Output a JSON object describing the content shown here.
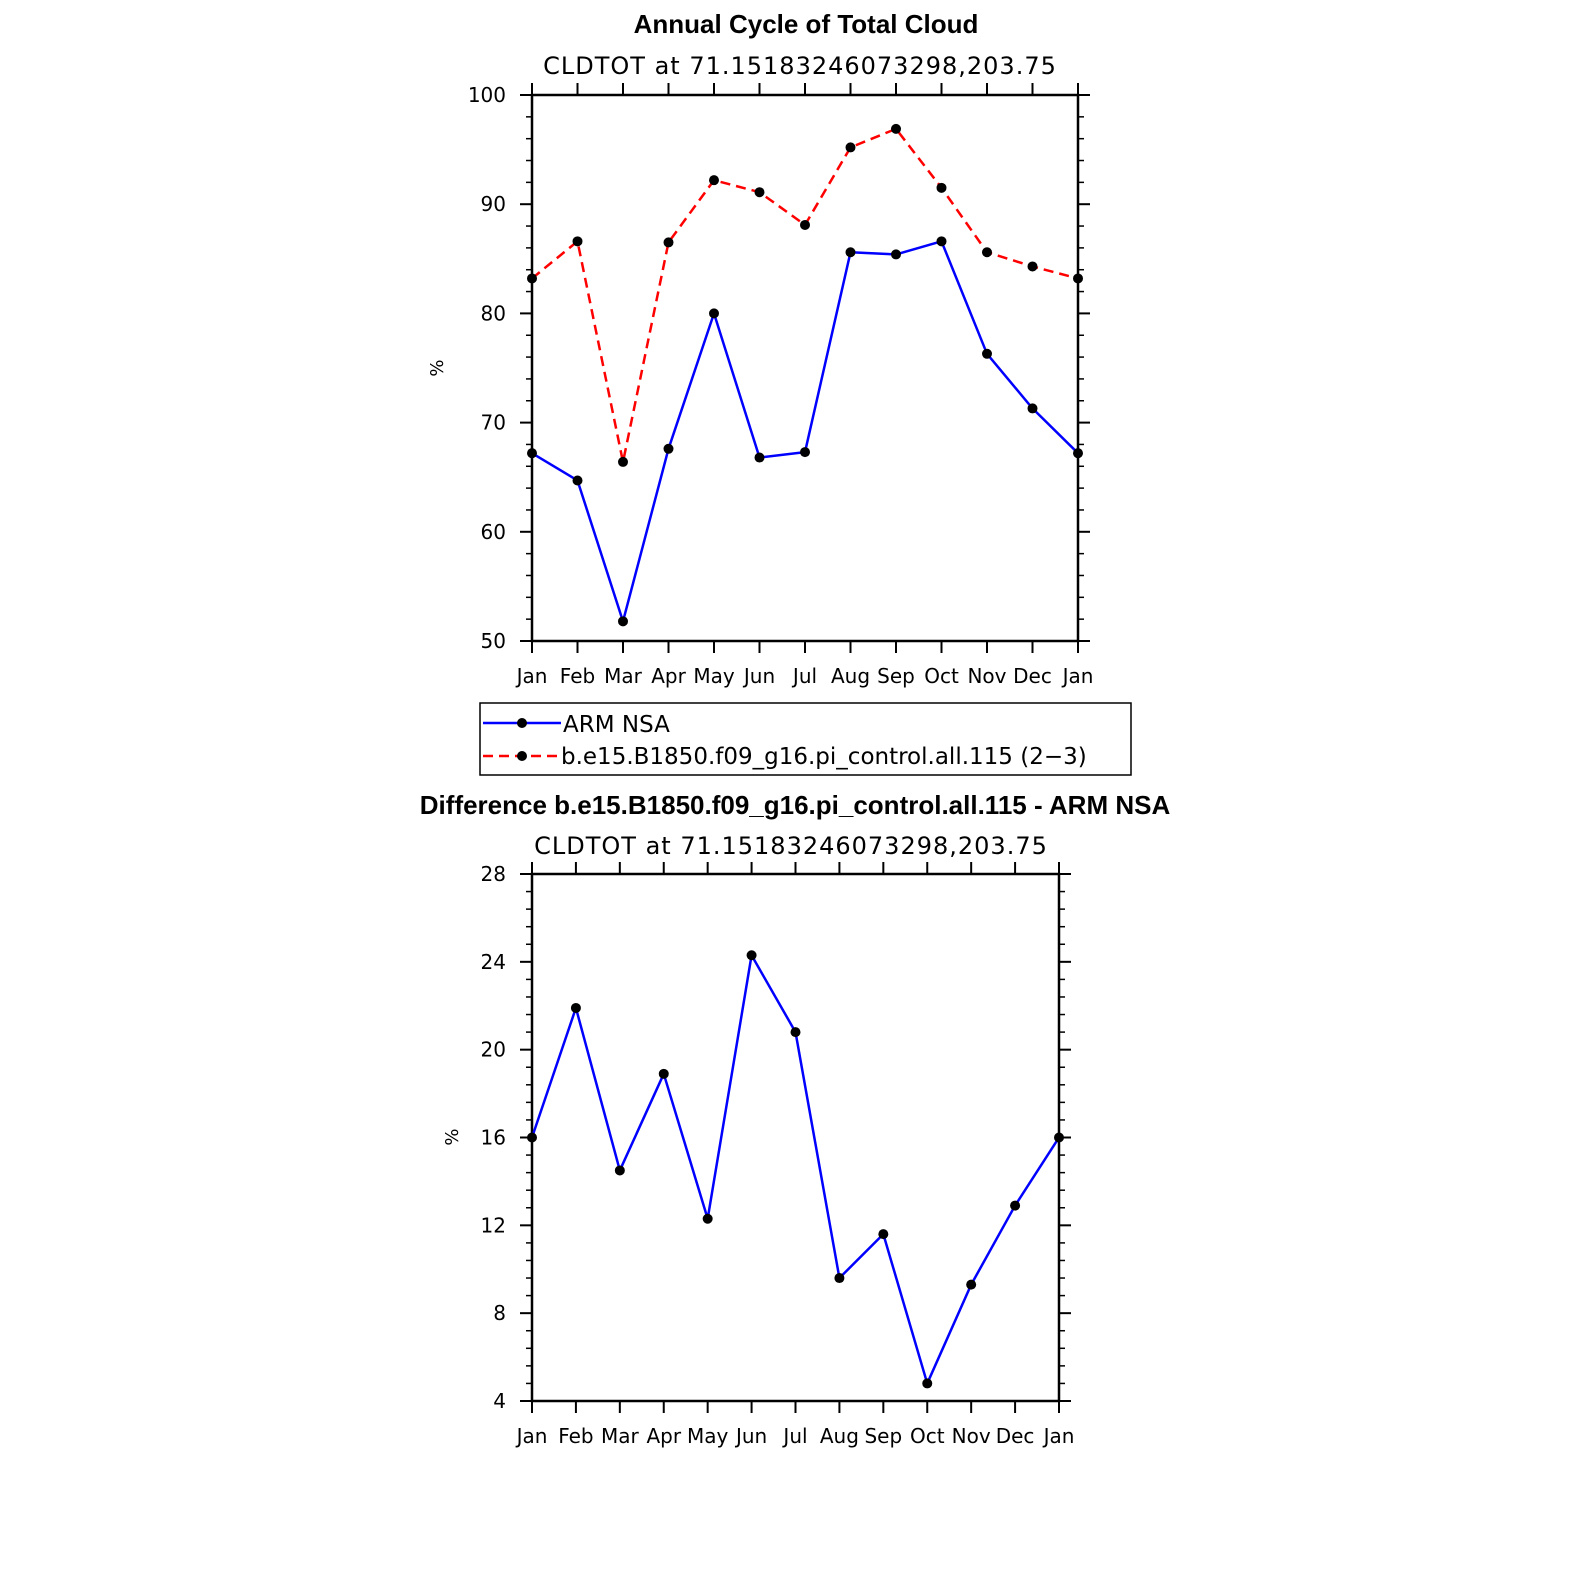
{
  "chart_data": [
    {
      "type": "line",
      "title": "Annual Cycle of Total Cloud",
      "subtitle": "CLDTOT at 71.15183246073298,203.75",
      "ylabel": "%",
      "xlabel": "",
      "categories": [
        "Jan",
        "Feb",
        "Mar",
        "Apr",
        "May",
        "Jun",
        "Jul",
        "Aug",
        "Sep",
        "Oct",
        "Nov",
        "Dec",
        "Jan"
      ],
      "ylim": [
        50,
        100
      ],
      "yticks": [
        50,
        60,
        70,
        80,
        90,
        100
      ],
      "series": [
        {
          "name": "ARM  NSA",
          "color": "#0000ff",
          "dash": "solid",
          "values": [
            67.2,
            64.7,
            51.8,
            67.6,
            80.0,
            66.8,
            67.3,
            85.6,
            85.4,
            86.6,
            76.3,
            71.3,
            67.2
          ]
        },
        {
          "name": "b.e15.B1850.f09_g16.pi_control.all.115 (2−3)",
          "color": "#ff0000",
          "dash": "dashed",
          "values": [
            83.2,
            86.6,
            66.4,
            86.5,
            92.2,
            91.1,
            88.1,
            95.2,
            96.9,
            91.5,
            85.6,
            84.3,
            83.2
          ]
        }
      ]
    },
    {
      "type": "line",
      "title": "Difference b.e15.B1850.f09_g16.pi_control.all.115 - ARM NSA",
      "subtitle": "CLDTOT at 71.15183246073298,203.75",
      "ylabel": "%",
      "xlabel": "",
      "categories": [
        "Jan",
        "Feb",
        "Mar",
        "Apr",
        "May",
        "Jun",
        "Jul",
        "Aug",
        "Sep",
        "Oct",
        "Nov",
        "Dec",
        "Jan"
      ],
      "ylim": [
        4,
        28
      ],
      "yticks": [
        4,
        8,
        12,
        16,
        20,
        24,
        28
      ],
      "series": [
        {
          "color": "#0000ff",
          "dash": "solid",
          "values": [
            16.0,
            21.9,
            14.5,
            18.9,
            12.3,
            24.3,
            20.8,
            9.6,
            11.6,
            4.8,
            9.3,
            12.9,
            16.0
          ]
        }
      ]
    }
  ]
}
